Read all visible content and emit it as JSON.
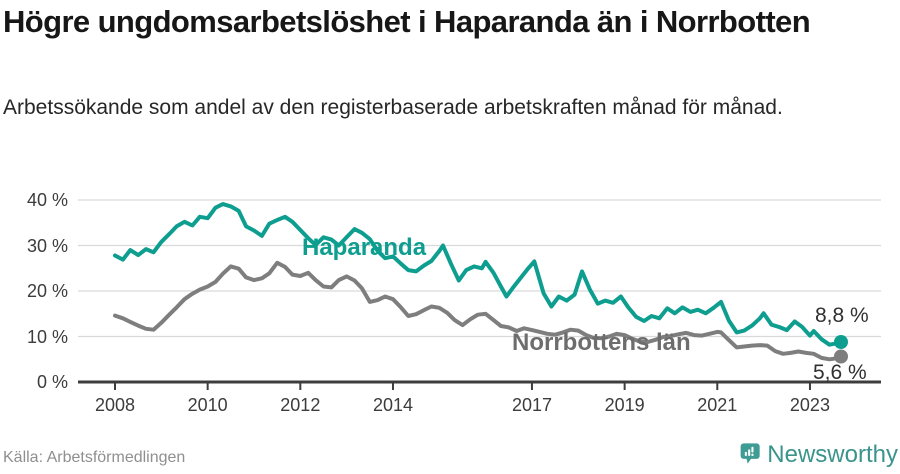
{
  "header": {
    "title": "Högre ungdomsarbetslöshet i Haparanda än i Norrbotten",
    "subtitle": "Arbetssökande som andel av den registerbaserade arbetskraften månad för månad."
  },
  "footer": {
    "source": "Källa: Arbetsförmedlingen",
    "brand": "Newsworthy",
    "brand_color": "#3a948c",
    "brand_icon": "bar-chart-speech-bubble-icon",
    "brand_icon_color": "#3f9c94"
  },
  "chart_data": {
    "type": "line",
    "title": "Högre ungdomsarbetslöshet i Haparanda än i Norrbotten",
    "subtitle": "Arbetssökande som andel av den registerbaserade arbetskraften månad för månad.",
    "xlabel": "",
    "ylabel": "",
    "grid": "horizontal",
    "legend_position": "inline-labels",
    "xlim": [
      2007.2,
      2024.5
    ],
    "ylim": [
      0,
      44
    ],
    "x_tick_years": [
      2008,
      2010,
      2012,
      2014,
      2017,
      2019,
      2021,
      2023
    ],
    "y_ticks": [
      {
        "value": 0,
        "label": "0 %"
      },
      {
        "value": 10,
        "label": "10 %"
      },
      {
        "value": 20,
        "label": "20 %"
      },
      {
        "value": 30,
        "label": "30 %"
      },
      {
        "value": 40,
        "label": "40 %"
      }
    ],
    "series": [
      {
        "name": "Haparanda",
        "color": "#0d9e8f",
        "end_label": "8,8 %",
        "end_value": 8.8,
        "points": [
          [
            2008.0,
            27.8
          ],
          [
            2008.17,
            26.9
          ],
          [
            2008.33,
            29.0
          ],
          [
            2008.5,
            27.9
          ],
          [
            2008.67,
            29.2
          ],
          [
            2008.83,
            28.5
          ],
          [
            2009.0,
            30.8
          ],
          [
            2009.17,
            32.5
          ],
          [
            2009.33,
            34.2
          ],
          [
            2009.5,
            35.2
          ],
          [
            2009.67,
            34.4
          ],
          [
            2009.83,
            36.3
          ],
          [
            2010.0,
            36.0
          ],
          [
            2010.17,
            38.3
          ],
          [
            2010.33,
            39.1
          ],
          [
            2010.5,
            38.6
          ],
          [
            2010.67,
            37.6
          ],
          [
            2010.83,
            34.2
          ],
          [
            2011.0,
            33.3
          ],
          [
            2011.17,
            32.1
          ],
          [
            2011.33,
            34.8
          ],
          [
            2011.5,
            35.6
          ],
          [
            2011.67,
            36.3
          ],
          [
            2011.83,
            35.2
          ],
          [
            2012.0,
            33.4
          ],
          [
            2012.17,
            31.6
          ],
          [
            2012.33,
            30.1
          ],
          [
            2012.5,
            31.8
          ],
          [
            2012.67,
            31.3
          ],
          [
            2012.83,
            30.0
          ],
          [
            2013.0,
            31.8
          ],
          [
            2013.17,
            33.6
          ],
          [
            2013.33,
            32.8
          ],
          [
            2013.5,
            31.4
          ],
          [
            2013.67,
            28.8
          ],
          [
            2013.83,
            27.2
          ],
          [
            2014.0,
            27.6
          ],
          [
            2014.17,
            26.0
          ],
          [
            2014.33,
            24.6
          ],
          [
            2014.5,
            24.3
          ],
          [
            2014.67,
            25.6
          ],
          [
            2014.83,
            26.6
          ],
          [
            2015.0,
            28.8
          ],
          [
            2015.08,
            30.0
          ],
          [
            2015.25,
            26.0
          ],
          [
            2015.42,
            22.3
          ],
          [
            2015.58,
            24.6
          ],
          [
            2015.75,
            25.4
          ],
          [
            2015.92,
            25.0
          ],
          [
            2016.0,
            26.4
          ],
          [
            2016.17,
            24.0
          ],
          [
            2016.33,
            21.0
          ],
          [
            2016.45,
            18.8
          ],
          [
            2016.58,
            20.6
          ],
          [
            2016.75,
            22.8
          ],
          [
            2016.92,
            25.0
          ],
          [
            2017.05,
            26.5
          ],
          [
            2017.25,
            19.5
          ],
          [
            2017.42,
            16.6
          ],
          [
            2017.58,
            18.8
          ],
          [
            2017.75,
            17.9
          ],
          [
            2017.92,
            19.2
          ],
          [
            2018.08,
            24.3
          ],
          [
            2018.25,
            20.3
          ],
          [
            2018.42,
            17.2
          ],
          [
            2018.58,
            17.9
          ],
          [
            2018.75,
            17.4
          ],
          [
            2018.92,
            18.8
          ],
          [
            2019.08,
            16.4
          ],
          [
            2019.25,
            14.3
          ],
          [
            2019.42,
            13.4
          ],
          [
            2019.58,
            14.5
          ],
          [
            2019.75,
            14.0
          ],
          [
            2019.92,
            16.2
          ],
          [
            2020.08,
            15.1
          ],
          [
            2020.25,
            16.4
          ],
          [
            2020.42,
            15.4
          ],
          [
            2020.58,
            15.9
          ],
          [
            2020.75,
            15.1
          ],
          [
            2020.92,
            16.3
          ],
          [
            2021.08,
            17.6
          ],
          [
            2021.25,
            13.5
          ],
          [
            2021.42,
            10.9
          ],
          [
            2021.58,
            11.3
          ],
          [
            2021.75,
            12.4
          ],
          [
            2021.92,
            14.0
          ],
          [
            2022.0,
            15.1
          ],
          [
            2022.17,
            12.6
          ],
          [
            2022.33,
            12.1
          ],
          [
            2022.5,
            11.4
          ],
          [
            2022.67,
            13.3
          ],
          [
            2022.83,
            12.1
          ],
          [
            2023.0,
            10.2
          ],
          [
            2023.08,
            11.2
          ],
          [
            2023.25,
            9.4
          ],
          [
            2023.42,
            8.2
          ],
          [
            2023.58,
            8.5
          ],
          [
            2023.67,
            8.8
          ]
        ]
      },
      {
        "name": "Norrbottens län",
        "color": "#7e7e7e",
        "end_label": "5,6 %",
        "end_value": 5.6,
        "points": [
          [
            2008.0,
            14.6
          ],
          [
            2008.17,
            14.0
          ],
          [
            2008.33,
            13.2
          ],
          [
            2008.5,
            12.4
          ],
          [
            2008.67,
            11.7
          ],
          [
            2008.83,
            11.5
          ],
          [
            2009.0,
            13.0
          ],
          [
            2009.17,
            14.8
          ],
          [
            2009.33,
            16.4
          ],
          [
            2009.5,
            18.2
          ],
          [
            2009.67,
            19.4
          ],
          [
            2009.83,
            20.3
          ],
          [
            2010.0,
            21.0
          ],
          [
            2010.17,
            22.0
          ],
          [
            2010.33,
            23.8
          ],
          [
            2010.5,
            25.4
          ],
          [
            2010.67,
            24.9
          ],
          [
            2010.83,
            23.0
          ],
          [
            2011.0,
            22.4
          ],
          [
            2011.17,
            22.8
          ],
          [
            2011.33,
            23.9
          ],
          [
            2011.5,
            26.2
          ],
          [
            2011.67,
            25.3
          ],
          [
            2011.83,
            23.6
          ],
          [
            2012.0,
            23.3
          ],
          [
            2012.17,
            24.0
          ],
          [
            2012.33,
            22.4
          ],
          [
            2012.5,
            21.0
          ],
          [
            2012.67,
            20.8
          ],
          [
            2012.83,
            22.4
          ],
          [
            2013.0,
            23.2
          ],
          [
            2013.17,
            22.3
          ],
          [
            2013.33,
            20.6
          ],
          [
            2013.5,
            17.6
          ],
          [
            2013.67,
            18.0
          ],
          [
            2013.83,
            18.8
          ],
          [
            2014.0,
            18.2
          ],
          [
            2014.17,
            16.4
          ],
          [
            2014.33,
            14.5
          ],
          [
            2014.5,
            14.9
          ],
          [
            2014.67,
            15.8
          ],
          [
            2014.83,
            16.6
          ],
          [
            2015.0,
            16.3
          ],
          [
            2015.17,
            15.2
          ],
          [
            2015.33,
            13.6
          ],
          [
            2015.5,
            12.5
          ],
          [
            2015.67,
            13.8
          ],
          [
            2015.83,
            14.8
          ],
          [
            2016.0,
            15.0
          ],
          [
            2016.17,
            13.6
          ],
          [
            2016.33,
            12.3
          ],
          [
            2016.5,
            12.0
          ],
          [
            2016.67,
            11.2
          ],
          [
            2016.83,
            11.8
          ],
          [
            2017.0,
            11.4
          ],
          [
            2017.17,
            11.0
          ],
          [
            2017.33,
            10.6
          ],
          [
            2017.5,
            10.4
          ],
          [
            2017.67,
            10.9
          ],
          [
            2017.83,
            11.5
          ],
          [
            2018.0,
            11.3
          ],
          [
            2018.17,
            10.3
          ],
          [
            2018.33,
            9.7
          ],
          [
            2018.5,
            9.6
          ],
          [
            2018.67,
            10.0
          ],
          [
            2018.83,
            10.6
          ],
          [
            2019.0,
            10.3
          ],
          [
            2019.17,
            9.5
          ],
          [
            2019.33,
            8.9
          ],
          [
            2019.5,
            8.8
          ],
          [
            2019.67,
            9.3
          ],
          [
            2019.83,
            9.9
          ],
          [
            2020.0,
            10.1
          ],
          [
            2020.17,
            10.5
          ],
          [
            2020.33,
            10.8
          ],
          [
            2020.5,
            10.3
          ],
          [
            2020.67,
            10.2
          ],
          [
            2020.83,
            10.6
          ],
          [
            2021.0,
            11.0
          ],
          [
            2021.08,
            10.9
          ],
          [
            2021.25,
            9.2
          ],
          [
            2021.42,
            7.6
          ],
          [
            2021.58,
            7.8
          ],
          [
            2021.75,
            8.0
          ],
          [
            2021.92,
            8.1
          ],
          [
            2022.08,
            8.0
          ],
          [
            2022.25,
            6.8
          ],
          [
            2022.42,
            6.2
          ],
          [
            2022.58,
            6.4
          ],
          [
            2022.75,
            6.7
          ],
          [
            2022.92,
            6.4
          ],
          [
            2023.08,
            6.2
          ],
          [
            2023.25,
            5.3
          ],
          [
            2023.42,
            5.0
          ],
          [
            2023.58,
            5.2
          ],
          [
            2023.67,
            5.6
          ]
        ]
      }
    ]
  }
}
